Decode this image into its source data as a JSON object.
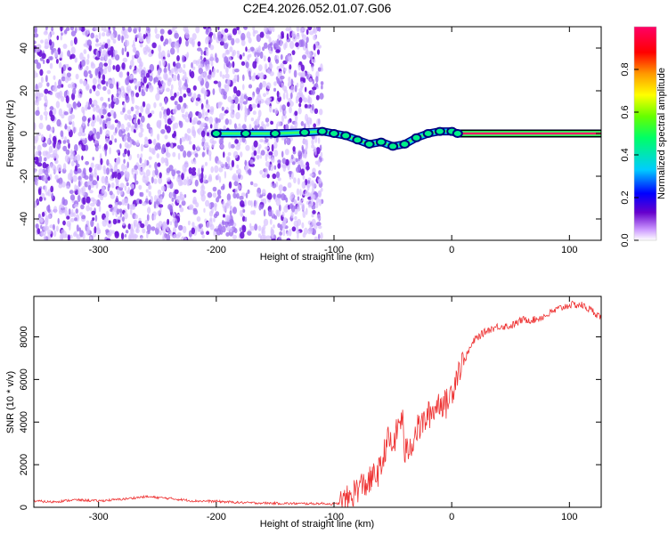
{
  "title": "C2E4.2026.052.01.07.G06",
  "chart_data": [
    {
      "type": "heatmap",
      "xlabel": "Height of straight line (km)",
      "ylabel": "Frequency (Hz)",
      "xlim": [
        -355,
        127
      ],
      "ylim": [
        -50,
        50
      ],
      "xticks": [
        -300,
        -200,
        -100,
        0,
        100
      ],
      "yticks": [
        -40,
        -20,
        0,
        20,
        40
      ],
      "xtick_labels": [
        "-300",
        "-200",
        "-100",
        "0",
        "100"
      ],
      "ytick_labels": [
        "-40",
        "-20",
        "0",
        "20",
        "40"
      ],
      "colorbar": {
        "label": "Normalized spectral amplitude",
        "range": [
          0,
          1
        ],
        "ticks": [
          0.0,
          0.2,
          0.4,
          0.6,
          0.8
        ],
        "tick_labels": [
          "0.0",
          "0.2",
          "0.4",
          "0.6",
          "0.8"
        ],
        "colors": [
          "#ffffff",
          "#cc99ff",
          "#6600cc",
          "#0000ff",
          "#00ccff",
          "#00ff66",
          "#66ff00",
          "#ffff00",
          "#ff9900",
          "#ff0000",
          "#ff0066"
        ]
      },
      "noise_region_x": [
        -355,
        -110
      ],
      "carrier_track": [
        {
          "x": -200,
          "y": 0
        },
        {
          "x": -175,
          "y": 0
        },
        {
          "x": -150,
          "y": 0
        },
        {
          "x": -125,
          "y": 0.5
        },
        {
          "x": -110,
          "y": 1
        },
        {
          "x": -100,
          "y": 0
        },
        {
          "x": -90,
          "y": -1
        },
        {
          "x": -80,
          "y": -3
        },
        {
          "x": -70,
          "y": -5
        },
        {
          "x": -60,
          "y": -4
        },
        {
          "x": -50,
          "y": -6
        },
        {
          "x": -40,
          "y": -5
        },
        {
          "x": -30,
          "y": -2
        },
        {
          "x": -20,
          "y": 0
        },
        {
          "x": -10,
          "y": 1
        },
        {
          "x": 0,
          "y": 1
        },
        {
          "x": 5,
          "y": 0
        },
        {
          "x": 127,
          "y": 0
        }
      ],
      "colors": {
        "series": "#ff1a66"
      }
    },
    {
      "type": "line",
      "xlabel": "Height of straight line (km)",
      "ylabel": "SNR (10 * v/v)",
      "xlim": [
        -355,
        127
      ],
      "ylim": [
        0,
        9900
      ],
      "xticks": [
        -300,
        -200,
        -100,
        0,
        100
      ],
      "yticks": [
        0,
        2000,
        4000,
        6000,
        8000
      ],
      "xtick_labels": [
        "-300",
        "-200",
        "-100",
        "0",
        "100"
      ],
      "ytick_labels": [
        "0",
        "2000",
        "4000",
        "6000",
        "8000"
      ],
      "series": [
        {
          "x": [
            -355,
            -340,
            -320,
            -300,
            -280,
            -260,
            -240,
            -220,
            -200,
            -180,
            -160,
            -140,
            -120,
            -110,
            -100,
            -90,
            -80,
            -70,
            -60,
            -55,
            -50,
            -45,
            -42,
            -40,
            -35,
            -30,
            -25,
            -20,
            -15,
            -10,
            -5,
            0,
            5,
            10,
            15,
            20,
            25,
            30,
            40,
            50,
            60,
            70,
            80,
            90,
            100,
            110,
            120,
            127
          ],
          "y": [
            300,
            250,
            350,
            300,
            380,
            500,
            420,
            300,
            280,
            220,
            200,
            180,
            170,
            180,
            150,
            250,
            900,
            1200,
            1800,
            3200,
            2800,
            3900,
            4300,
            2500,
            2900,
            3600,
            3900,
            4300,
            4600,
            5000,
            4800,
            5400,
            6400,
            6800,
            7400,
            7900,
            8100,
            8300,
            8500,
            8500,
            8800,
            8800,
            9000,
            9300,
            9500,
            9500,
            9200,
            8900
          ]
        }
      ],
      "colors": {
        "series": "#ee3333"
      }
    }
  ]
}
